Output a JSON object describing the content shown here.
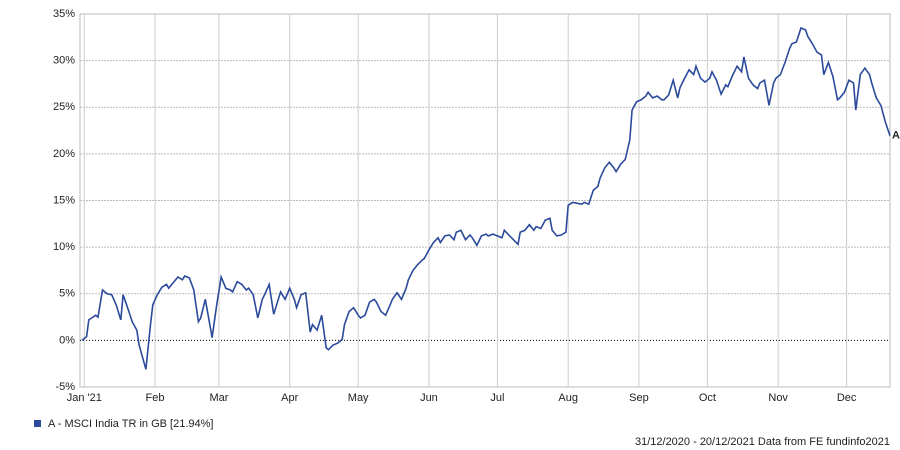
{
  "chart_data": {
    "type": "line",
    "footer": "31/12/2020 - 20/12/2021 Data from FE fundinfo2021",
    "x": [
      0,
      2,
      3,
      6,
      7,
      9,
      11,
      13,
      15,
      17,
      18,
      20,
      22,
      24,
      25,
      28,
      30,
      31,
      33,
      35,
      37,
      38,
      40,
      42,
      44,
      45,
      47,
      49,
      51,
      52,
      54,
      56,
      57,
      59,
      61,
      63,
      65,
      66,
      68,
      70,
      72,
      73,
      75,
      77,
      79,
      80,
      82,
      84,
      86,
      87,
      89,
      91,
      93,
      94,
      96,
      98,
      100,
      101,
      103,
      105,
      107,
      108,
      110,
      112,
      114,
      115,
      117,
      119,
      121,
      122,
      124,
      126,
      128,
      129,
      131,
      133,
      135,
      136,
      138,
      140,
      142,
      143,
      145,
      147,
      149,
      150,
      152,
      154,
      156,
      157,
      159,
      161,
      163,
      164,
      166,
      168,
      170,
      171,
      173,
      175,
      177,
      178,
      180,
      182,
      184,
      185,
      187,
      189,
      191,
      192,
      194,
      196,
      198,
      199,
      201,
      203,
      205,
      206,
      208,
      210,
      212,
      213,
      215,
      217,
      219,
      220,
      222,
      224,
      226,
      227,
      229,
      231,
      233,
      234,
      236,
      238,
      240,
      241,
      243,
      245,
      247,
      248,
      250,
      252,
      254,
      255,
      257,
      259,
      261,
      262,
      264,
      266,
      268,
      269,
      271,
      273,
      275,
      276,
      278,
      280,
      282,
      283,
      285,
      287,
      289,
      290,
      292,
      294,
      296,
      297,
      299,
      301,
      303,
      304,
      306,
      308,
      310,
      311,
      313,
      315,
      317,
      318,
      320,
      322,
      324,
      325,
      327,
      329,
      331,
      332,
      334,
      336,
      338,
      339,
      341,
      343,
      345,
      346,
      348,
      350,
      352,
      354
    ],
    "series": [
      {
        "name": "A - MSCI India TR in GB [21.94%]",
        "label": "A",
        "color": "#2b4a9b",
        "values": [
          0,
          0.4,
          2.2,
          2.7,
          2.5,
          5.4,
          5.0,
          4.9,
          3.8,
          2.2,
          4.9,
          3.5,
          2.0,
          1.1,
          -0.5,
          -3.1,
          1.7,
          3.8,
          4.9,
          5.7,
          6.0,
          5.6,
          6.2,
          6.8,
          6.5,
          6.9,
          6.7,
          5.4,
          2.0,
          2.4,
          4.4,
          1.7,
          0.3,
          3.8,
          6.8,
          5.6,
          5.4,
          5.2,
          6.3,
          6.0,
          5.4,
          5.6,
          4.9,
          2.4,
          4.4,
          4.9,
          6.0,
          2.8,
          4.4,
          5.2,
          4.4,
          5.6,
          4.4,
          3.5,
          4.9,
          5.1,
          0.9,
          1.7,
          1.1,
          2.7,
          -0.8,
          -1.0,
          -0.5,
          -0.3,
          0.1,
          1.7,
          3.1,
          3.5,
          2.7,
          2.4,
          2.7,
          4.1,
          4.4,
          4.1,
          3.1,
          2.7,
          3.8,
          4.4,
          5.1,
          4.4,
          5.6,
          6.5,
          7.5,
          8.1,
          8.6,
          8.8,
          9.7,
          10.5,
          11.0,
          10.5,
          11.2,
          11.3,
          10.8,
          11.6,
          11.8,
          10.8,
          11.3,
          11.0,
          10.2,
          11.2,
          11.4,
          11.2,
          11.4,
          11.2,
          11.0,
          11.8,
          11.3,
          10.8,
          10.3,
          11.6,
          11.8,
          12.4,
          11.8,
          12.2,
          12.0,
          12.9,
          13.1,
          11.8,
          11.2,
          11.3,
          11.6,
          14.5,
          14.8,
          14.7,
          14.6,
          14.8,
          14.6,
          16.1,
          16.5,
          17.4,
          18.5,
          19.1,
          18.5,
          18.1,
          18.9,
          19.4,
          21.5,
          24.7,
          25.6,
          25.8,
          26.2,
          26.6,
          26.0,
          26.2,
          25.8,
          25.8,
          26.3,
          27.9,
          26.0,
          27.1,
          28.1,
          29.0,
          28.5,
          29.4,
          28.1,
          27.7,
          28.1,
          28.8,
          27.9,
          26.4,
          27.4,
          27.2,
          28.4,
          29.4,
          28.8,
          30.4,
          28.1,
          27.4,
          27.0,
          27.6,
          27.9,
          25.2,
          27.6,
          28.1,
          28.5,
          29.8,
          31.3,
          31.8,
          32.0,
          33.5,
          33.3,
          32.6,
          31.8,
          30.9,
          30.6,
          28.5,
          29.8,
          28.3,
          25.8,
          26.0,
          26.6,
          27.9,
          27.6,
          24.7,
          28.5,
          29.2,
          28.5,
          27.6,
          26.0,
          25.2,
          23.4,
          21.94
        ]
      }
    ],
    "xlim": [
      0,
      354
    ],
    "xticks": [
      {
        "value": 1,
        "label": "Jan '21"
      },
      {
        "value": 32,
        "label": "Feb"
      },
      {
        "value": 60,
        "label": "Mar"
      },
      {
        "value": 91,
        "label": "Apr"
      },
      {
        "value": 121,
        "label": "May"
      },
      {
        "value": 152,
        "label": "Jun"
      },
      {
        "value": 182,
        "label": "Jul"
      },
      {
        "value": 213,
        "label": "Aug"
      },
      {
        "value": 244,
        "label": "Sep"
      },
      {
        "value": 274,
        "label": "Oct"
      },
      {
        "value": 305,
        "label": "Nov"
      },
      {
        "value": 335,
        "label": "Dec"
      }
    ],
    "ylim": [
      -5,
      35
    ],
    "yticks": [
      {
        "value": -5,
        "label": "-5%"
      },
      {
        "value": 0,
        "label": "0%"
      },
      {
        "value": 5,
        "label": "5%"
      },
      {
        "value": 10,
        "label": "10%"
      },
      {
        "value": 15,
        "label": "15%"
      },
      {
        "value": 20,
        "label": "20%"
      },
      {
        "value": 25,
        "label": "25%"
      },
      {
        "value": 30,
        "label": "30%"
      },
      {
        "value": 35,
        "label": "35%"
      }
    ],
    "grid": true
  }
}
